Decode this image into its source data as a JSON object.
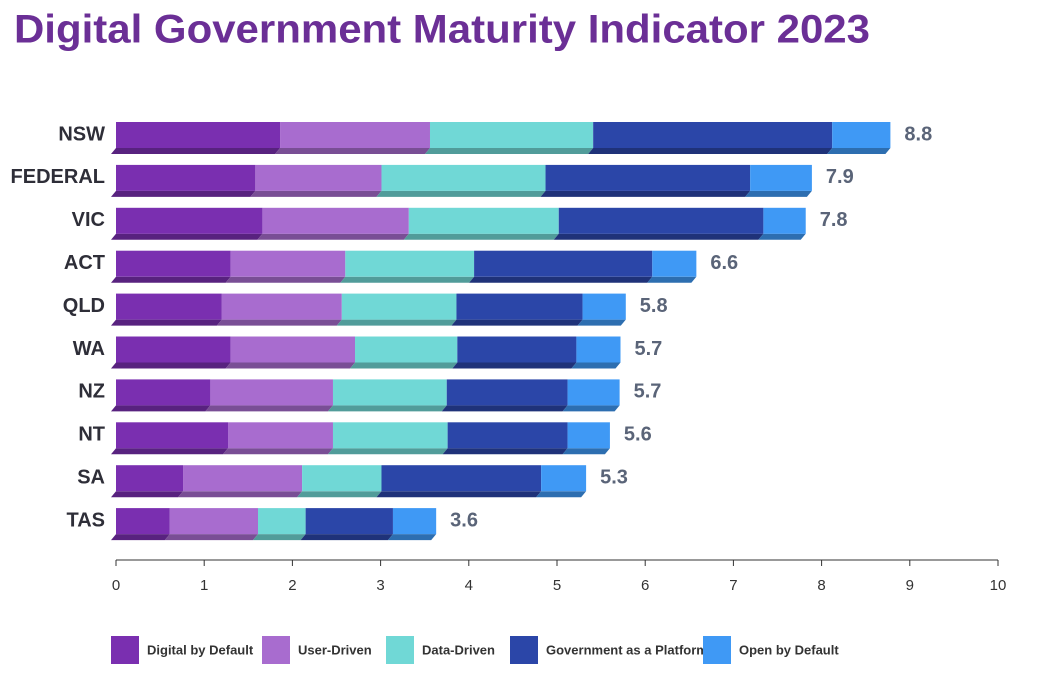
{
  "chart_data": {
    "type": "stacked-bar-horizontal",
    "title": "Digital Government Maturity Indicator 2023",
    "categories": [
      "NSW",
      "FEDERAL",
      "VIC",
      "ACT",
      "QLD",
      "WA",
      "NZ",
      "NT",
      "SA",
      "TAS"
    ],
    "series": [
      {
        "name": "Digital by Default",
        "color": "#7a2fb0",
        "values": [
          1.86,
          1.58,
          1.66,
          1.3,
          1.2,
          1.3,
          1.07,
          1.27,
          0.76,
          0.61
        ]
      },
      {
        "name": "User-Driven",
        "color": "#a86ccf",
        "values": [
          1.7,
          1.43,
          1.66,
          1.3,
          1.36,
          1.41,
          1.39,
          1.19,
          1.35,
          1.0
        ]
      },
      {
        "name": "Data-Driven",
        "color": "#70d8d6",
        "values": [
          1.85,
          1.86,
          1.7,
          1.46,
          1.3,
          1.16,
          1.29,
          1.3,
          0.9,
          0.54
        ]
      },
      {
        "name": "Government as a Platform",
        "color": "#2b46a8",
        "values": [
          2.71,
          2.32,
          2.32,
          2.02,
          1.43,
          1.35,
          1.37,
          1.36,
          1.81,
          0.99
        ]
      },
      {
        "name": "Open by Default",
        "color": "#3f99f5",
        "values": [
          0.66,
          0.7,
          0.48,
          0.5,
          0.49,
          0.5,
          0.59,
          0.48,
          0.51,
          0.49
        ]
      }
    ],
    "totals": [
      8.8,
      7.9,
      7.8,
      6.6,
      5.8,
      5.7,
      5.7,
      5.6,
      5.3,
      3.6
    ],
    "xlim": [
      0,
      10
    ],
    "xticks": [
      0,
      1,
      2,
      3,
      4,
      5,
      6,
      7,
      8,
      9,
      10
    ]
  }
}
